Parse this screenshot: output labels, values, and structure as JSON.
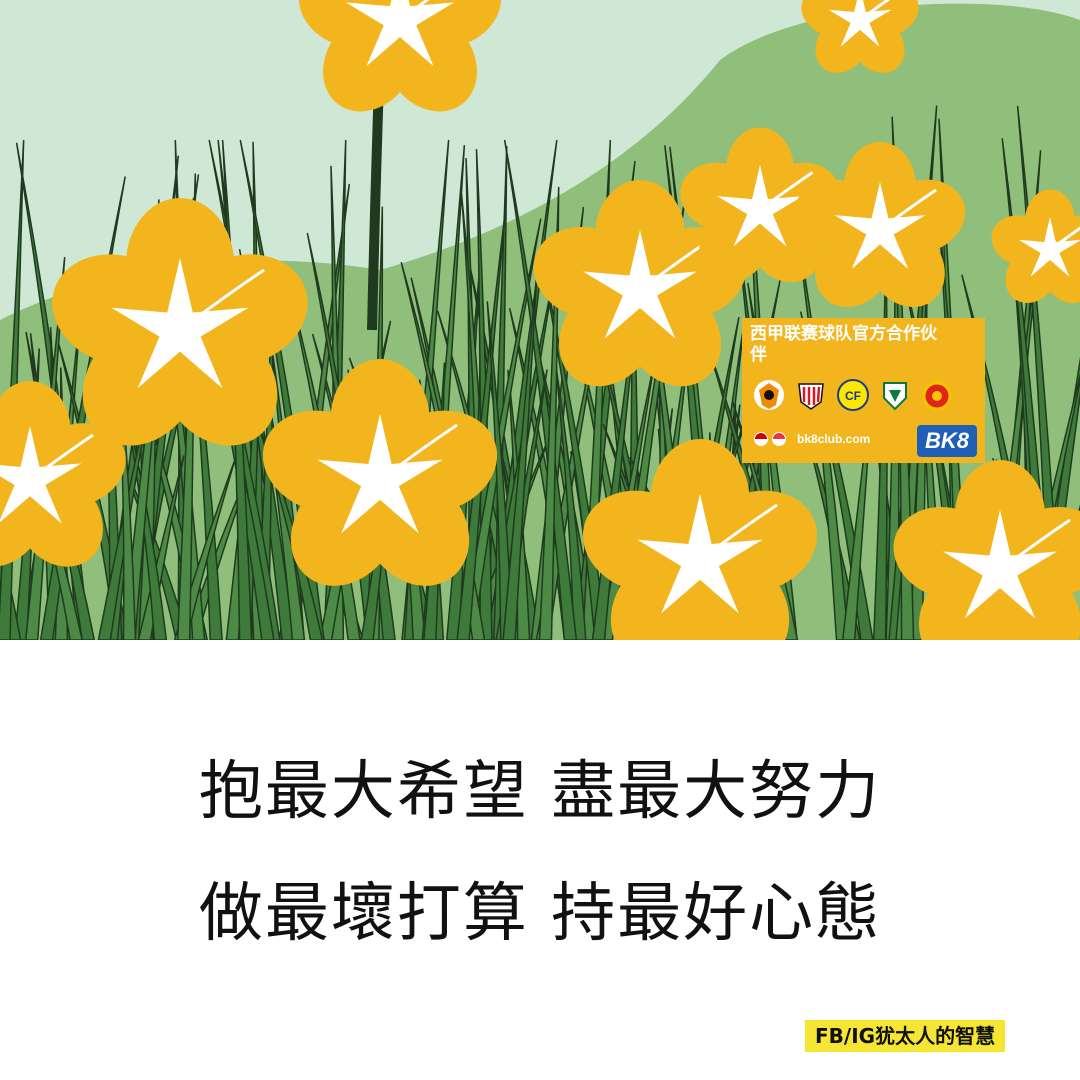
{
  "illustration": {
    "description_icon": "yellow-lily-flowers",
    "colors": {
      "sky": "#cfe8d6",
      "flower": "#f2b51d",
      "leaf": "#4c8a45",
      "outline": "#1f3a1f"
    }
  },
  "ad_badge": {
    "title": "西甲联赛球队官方合作伙伴",
    "url": "bk8club.com",
    "logo": "BK8",
    "crest_icons": [
      "valencia-crest-icon",
      "athletic-bilbao-crest-icon",
      "villarreal-crest-icon",
      "elche-crest-icon",
      "mallorca-crest-icon"
    ],
    "flag_icons": [
      "malaysia-flag-icon",
      "singapore-flag-icon"
    ],
    "bg_color": "#f2b51d"
  },
  "quote": {
    "line1": "抱最大希望 盡最大努力",
    "line2": "做最壞打算 持最好心態"
  },
  "credit": {
    "text": "FB/IG犹太人的智慧",
    "bg_color": "#f5e633"
  }
}
